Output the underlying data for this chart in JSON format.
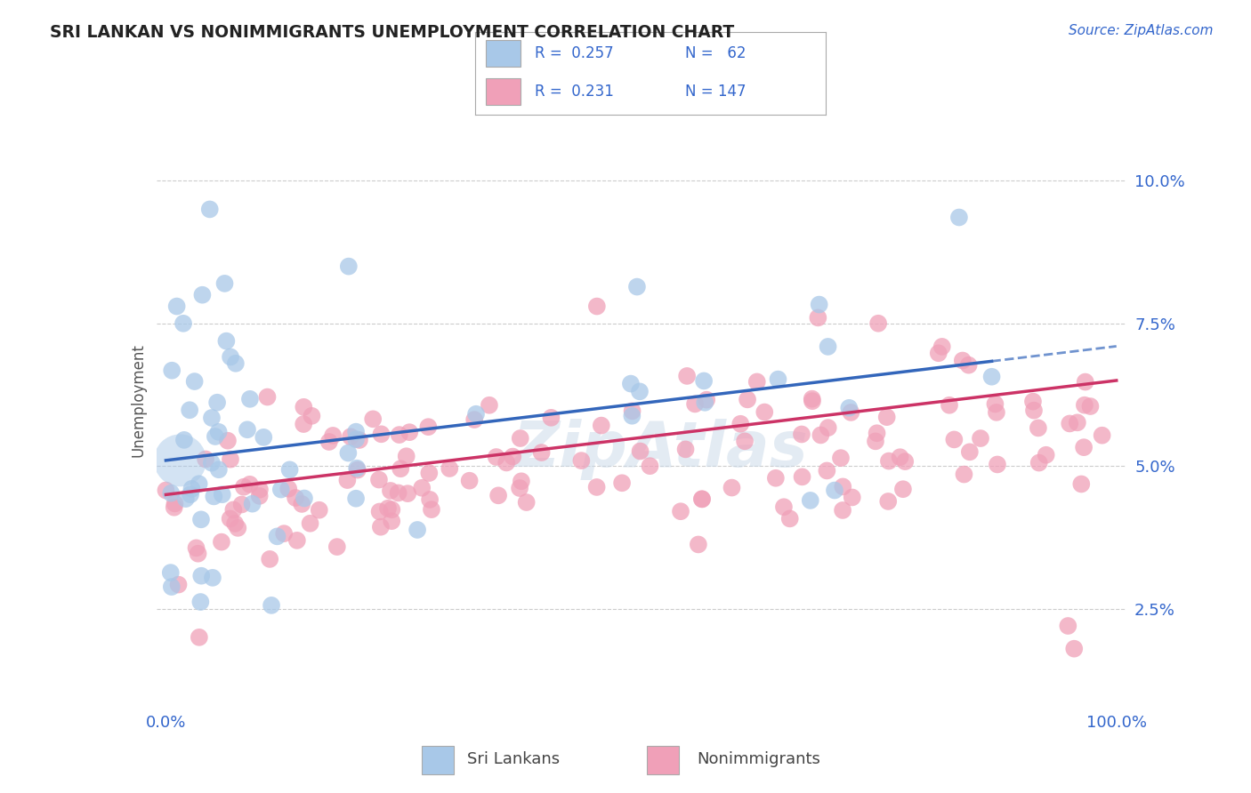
{
  "title": "SRI LANKAN VS NONIMMIGRANTS UNEMPLOYMENT CORRELATION CHART",
  "source_text": "Source: ZipAtlas.com",
  "ylabel": "Unemployment",
  "yticks": [
    2.5,
    5.0,
    7.5,
    10.0
  ],
  "ytick_labels": [
    "2.5%",
    "5.0%",
    "7.5%",
    "10.0%"
  ],
  "xtick_labels": [
    "0.0%",
    "100.0%"
  ],
  "sri_lankan_fill": "#A8C8E8",
  "sri_lankan_edge": "none",
  "nonimmigrant_fill": "#F0A0B8",
  "nonimmigrant_edge": "none",
  "trend_sri_color": "#3366BB",
  "trend_non_color": "#CC3366",
  "R_sri": 0.257,
  "N_sri": 62,
  "R_non": 0.231,
  "N_non": 147,
  "legend_text_color": "#3366CC",
  "background_color": "#FFFFFF",
  "grid_color": "#CCCCCC",
  "watermark_color": "#C8D8E8",
  "title_color": "#222222",
  "axis_label_color": "#555555"
}
